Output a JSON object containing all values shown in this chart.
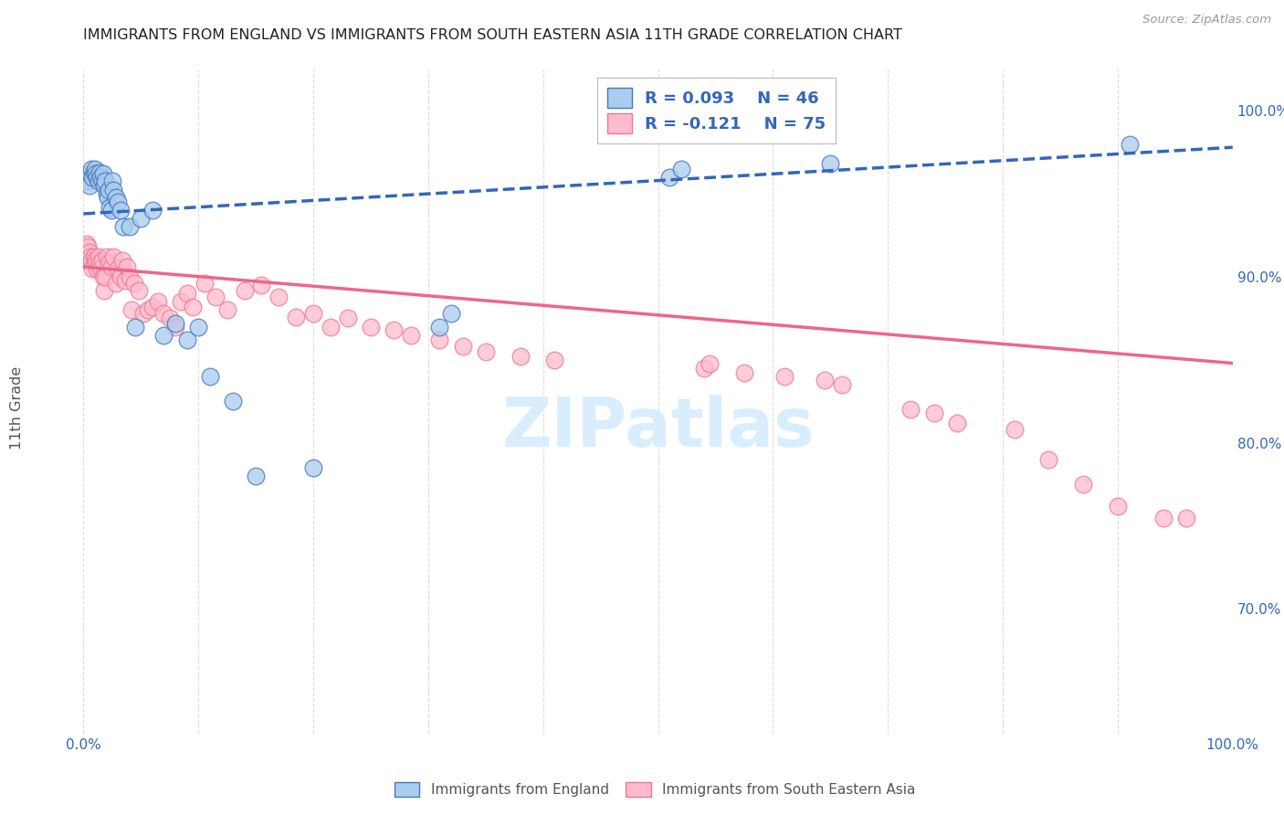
{
  "title": "IMMIGRANTS FROM ENGLAND VS IMMIGRANTS FROM SOUTH EASTERN ASIA 11TH GRADE CORRELATION CHART",
  "source": "Source: ZipAtlas.com",
  "ylabel": "11th Grade",
  "legend_england": "Immigrants from England",
  "legend_sea": "Immigrants from South Eastern Asia",
  "r_england": 0.093,
  "n_england": 46,
  "r_sea": -0.121,
  "n_sea": 75,
  "england_fill_color": "#AACCEE",
  "sea_fill_color": "#FFBBCC",
  "england_edge_color": "#4477BB",
  "sea_edge_color": "#EE7799",
  "england_line_color": "#3366BB",
  "sea_line_color": "#EE6688",
  "background_color": "#FFFFFF",
  "grid_color": "#DDDDDD",
  "xlim": [
    0.0,
    1.0
  ],
  "ylim": [
    0.625,
    1.025
  ],
  "england_line_x0": 0.0,
  "england_line_y0": 0.938,
  "england_line_x1": 1.0,
  "england_line_y1": 0.978,
  "sea_line_x0": 0.0,
  "sea_line_y0": 0.906,
  "sea_line_x1": 1.0,
  "sea_line_y1": 0.848,
  "england_x": [
    0.003,
    0.004,
    0.005,
    0.006,
    0.007,
    0.008,
    0.009,
    0.01,
    0.011,
    0.012,
    0.013,
    0.014,
    0.015,
    0.016,
    0.017,
    0.018,
    0.019,
    0.02,
    0.021,
    0.022,
    0.023,
    0.024,
    0.025,
    0.026,
    0.028,
    0.03,
    0.032,
    0.035,
    0.04,
    0.045,
    0.05,
    0.06,
    0.07,
    0.08,
    0.09,
    0.1,
    0.11,
    0.13,
    0.15,
    0.2,
    0.31,
    0.32,
    0.51,
    0.52,
    0.65,
    0.91
  ],
  "england_y": [
    0.96,
    0.958,
    0.955,
    0.962,
    0.965,
    0.96,
    0.963,
    0.965,
    0.962,
    0.96,
    0.958,
    0.963,
    0.96,
    0.958,
    0.962,
    0.955,
    0.958,
    0.95,
    0.948,
    0.952,
    0.942,
    0.94,
    0.958,
    0.952,
    0.948,
    0.945,
    0.94,
    0.93,
    0.93,
    0.87,
    0.935,
    0.94,
    0.865,
    0.872,
    0.862,
    0.87,
    0.84,
    0.825,
    0.78,
    0.785,
    0.87,
    0.878,
    0.96,
    0.965,
    0.968,
    0.98
  ],
  "sea_x": [
    0.002,
    0.003,
    0.004,
    0.005,
    0.006,
    0.007,
    0.008,
    0.009,
    0.01,
    0.011,
    0.012,
    0.013,
    0.014,
    0.015,
    0.016,
    0.017,
    0.018,
    0.019,
    0.02,
    0.022,
    0.024,
    0.026,
    0.028,
    0.03,
    0.032,
    0.034,
    0.036,
    0.038,
    0.04,
    0.042,
    0.044,
    0.048,
    0.052,
    0.056,
    0.06,
    0.065,
    0.07,
    0.075,
    0.08,
    0.085,
    0.09,
    0.095,
    0.105,
    0.115,
    0.125,
    0.14,
    0.155,
    0.17,
    0.185,
    0.2,
    0.215,
    0.23,
    0.25,
    0.27,
    0.285,
    0.31,
    0.33,
    0.35,
    0.38,
    0.41,
    0.54,
    0.545,
    0.575,
    0.61,
    0.645,
    0.66,
    0.72,
    0.74,
    0.76,
    0.81,
    0.84,
    0.87,
    0.9,
    0.94,
    0.96
  ],
  "sea_y": [
    0.912,
    0.92,
    0.918,
    0.915,
    0.912,
    0.91,
    0.905,
    0.912,
    0.91,
    0.908,
    0.905,
    0.912,
    0.908,
    0.905,
    0.91,
    0.9,
    0.892,
    0.9,
    0.912,
    0.908,
    0.906,
    0.912,
    0.896,
    0.905,
    0.9,
    0.91,
    0.898,
    0.906,
    0.9,
    0.88,
    0.896,
    0.892,
    0.878,
    0.88,
    0.882,
    0.885,
    0.878,
    0.875,
    0.87,
    0.885,
    0.89,
    0.882,
    0.896,
    0.888,
    0.88,
    0.892,
    0.895,
    0.888,
    0.876,
    0.878,
    0.87,
    0.875,
    0.87,
    0.868,
    0.865,
    0.862,
    0.858,
    0.855,
    0.852,
    0.85,
    0.845,
    0.848,
    0.842,
    0.84,
    0.838,
    0.835,
    0.82,
    0.818,
    0.812,
    0.808,
    0.79,
    0.775,
    0.762,
    0.755,
    0.755
  ]
}
